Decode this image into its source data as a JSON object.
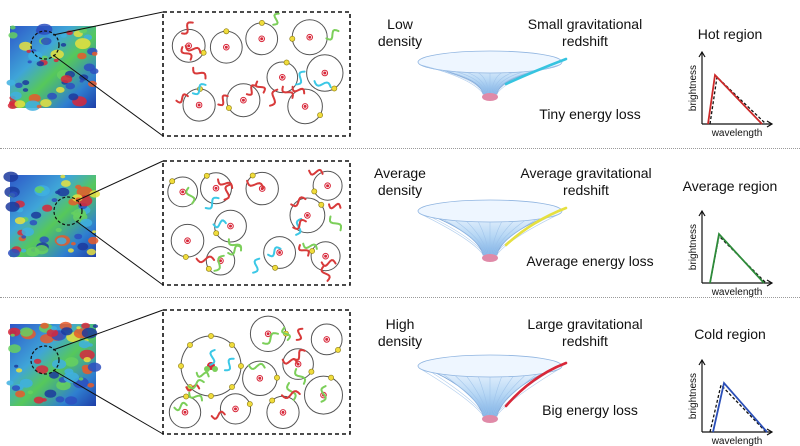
{
  "rows": [
    {
      "density_label": "Low\ndensity",
      "redshift_label": "Small gravitational\nredshift",
      "energy_label": "Tiny energy loss",
      "region_label": "Hot region",
      "curve_color": "#cc2a2a",
      "well_path_color": "#36c4e0"
    },
    {
      "density_label": "Average\ndensity",
      "redshift_label": "Average gravitational\nredshift",
      "energy_label": "Average energy loss",
      "region_label": "Average region",
      "curve_color": "#2e8b3a",
      "well_path_color": "#e6e040"
    },
    {
      "density_label": "High\ndensity",
      "redshift_label": "Large gravitational\nredshift",
      "energy_label": "Big energy loss",
      "region_label": "Cold region",
      "curve_color": "#2b4fb8",
      "well_path_color": "#d8283a"
    }
  ],
  "axes": {
    "y_label": "brightness",
    "x_label": "wavelength"
  },
  "colors": {
    "wiggle_red": "#d83a3a",
    "wiggle_green": "#7ccf5a",
    "wiggle_cyan": "#3cc8e6",
    "circle_dot": "#d8283a",
    "small_dot": "#f0dc3c"
  }
}
